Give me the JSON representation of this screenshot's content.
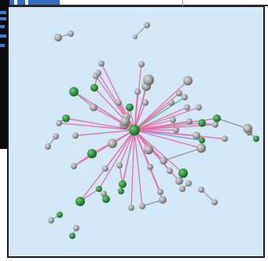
{
  "graph": {
    "colors": {
      "background": "#d2e8f8",
      "edge_pink": "#e56aa2",
      "edge_green": "#4fb57a",
      "edge_blue": "#7d8fe6",
      "edge_gray": "#8a8a8a",
      "node_green": "#2f8a3a",
      "node_gray": "#9a9a9a"
    },
    "hub": "hub",
    "nodes": [
      {
        "id": "hub",
        "c": "green",
        "s": 7
      },
      {
        "id": "n1",
        "c": "gray",
        "s": 6
      },
      {
        "id": "n2",
        "c": "gray",
        "s": 5
      },
      {
        "id": "n3",
        "c": "gray",
        "s": 7
      },
      {
        "id": "n4",
        "c": "gray",
        "s": 4
      },
      {
        "id": "n5",
        "c": "gray",
        "s": 4
      },
      {
        "id": "n6",
        "c": "gray",
        "s": 4
      },
      {
        "id": "n7",
        "c": "gray",
        "s": 6
      },
      {
        "id": "n8",
        "c": "gray",
        "s": 4
      },
      {
        "id": "n9",
        "c": "gray",
        "s": 4
      },
      {
        "id": "n10",
        "c": "gray",
        "s": 4
      },
      {
        "id": "n11",
        "c": "green",
        "s": 5
      },
      {
        "id": "n12",
        "c": "gray",
        "s": 4
      },
      {
        "id": "n13",
        "c": "gray",
        "s": 6
      },
      {
        "id": "n14",
        "c": "gray",
        "s": 4
      },
      {
        "id": "n15",
        "c": "gray",
        "s": 6
      },
      {
        "id": "n16",
        "c": "green",
        "s": 5
      },
      {
        "id": "n17",
        "c": "gray",
        "s": 4
      },
      {
        "id": "n18",
        "c": "gray",
        "s": 4
      },
      {
        "id": "n19",
        "c": "gray",
        "s": 4
      },
      {
        "id": "n20",
        "c": "green",
        "s": 5
      },
      {
        "id": "n21",
        "c": "gray",
        "s": 5
      },
      {
        "id": "n22",
        "c": "gray",
        "s": 6
      },
      {
        "id": "n23",
        "c": "gray",
        "s": 4
      },
      {
        "id": "n24",
        "c": "green",
        "s": 4
      },
      {
        "id": "n25",
        "c": "green",
        "s": 5
      },
      {
        "id": "n26",
        "c": "gray",
        "s": 4
      },
      {
        "id": "n27",
        "c": "gray",
        "s": 4
      },
      {
        "id": "n28",
        "c": "gray",
        "s": 4
      },
      {
        "id": "n29",
        "c": "gray",
        "s": 6
      },
      {
        "id": "n30",
        "c": "green",
        "s": 6
      },
      {
        "id": "n31",
        "c": "gray",
        "s": 5
      },
      {
        "id": "n32",
        "c": "gray",
        "s": 4
      },
      {
        "id": "n33",
        "c": "green",
        "s": 5
      },
      {
        "id": "n34",
        "c": "gray",
        "s": 4
      },
      {
        "id": "n35",
        "c": "gray",
        "s": 6
      },
      {
        "id": "n36",
        "c": "green",
        "s": 6
      },
      {
        "id": "n37",
        "c": "gray",
        "s": 4
      },
      {
        "id": "n38",
        "c": "green",
        "s": 6
      },
      {
        "id": "n39",
        "c": "gray",
        "s": 5
      },
      {
        "id": "n40",
        "c": "green",
        "s": 6
      },
      {
        "id": "n41",
        "c": "green",
        "s": 4
      },
      {
        "id": "n42",
        "c": "gray",
        "s": 5
      },
      {
        "id": "n43",
        "c": "green",
        "s": 5
      },
      {
        "id": "n44",
        "c": "gray",
        "s": 4
      },
      {
        "id": "n45",
        "c": "gray",
        "s": 4
      },
      {
        "id": "n46",
        "c": "gray",
        "s": 4
      },
      {
        "id": "n47",
        "c": "gray",
        "s": 5
      },
      {
        "id": "n48",
        "c": "gray",
        "s": 4
      },
      {
        "id": "n49",
        "c": "gray",
        "s": 4
      },
      {
        "id": "n50",
        "c": "green",
        "s": 4
      },
      {
        "id": "n51",
        "c": "gray",
        "s": 4
      },
      {
        "id": "n52",
        "c": "gray",
        "s": 4
      },
      {
        "id": "n53",
        "c": "gray",
        "s": 4
      },
      {
        "id": "n54",
        "c": "gray",
        "s": 4
      },
      {
        "id": "n55",
        "c": "gray",
        "s": 5
      },
      {
        "id": "n56",
        "c": "gray",
        "s": 4
      },
      {
        "id": "n57",
        "c": "gray",
        "s": 3
      },
      {
        "id": "n58",
        "c": "gray",
        "s": 4
      },
      {
        "id": "n59",
        "c": "green",
        "s": 5
      },
      {
        "id": "n60",
        "c": "gray",
        "s": 4
      },
      {
        "id": "n61",
        "c": "gray",
        "s": 6
      },
      {
        "id": "n62",
        "c": "green",
        "s": 4
      },
      {
        "id": "n63",
        "c": "gray",
        "s": 4
      },
      {
        "id": "n64",
        "c": "green",
        "s": 4
      },
      {
        "id": "n65",
        "c": "gray",
        "s": 4
      },
      {
        "id": "n66",
        "c": "gray",
        "s": 4
      },
      {
        "id": "n67",
        "c": "gray",
        "s": 4
      },
      {
        "id": "n68",
        "c": "gray",
        "s": 4
      },
      {
        "id": "n69",
        "c": "gray",
        "s": 4
      },
      {
        "id": "n70",
        "c": "gray",
        "s": 4
      },
      {
        "id": "n71",
        "c": "gray",
        "s": 4
      },
      {
        "id": "n72",
        "c": "gray",
        "s": 4
      },
      {
        "id": "n73",
        "c": "green",
        "s": 4
      }
    ],
    "edges": [
      {
        "a": "hub",
        "b": "n1",
        "c": "pink"
      },
      {
        "a": "hub",
        "b": "n2",
        "c": "pink"
      },
      {
        "a": "hub",
        "b": "n3",
        "c": "pink"
      },
      {
        "a": "hub",
        "b": "n4",
        "c": "pink"
      },
      {
        "a": "hub",
        "b": "n5",
        "c": "pink"
      },
      {
        "a": "hub",
        "b": "n6",
        "c": "pink"
      },
      {
        "a": "hub",
        "b": "n7",
        "c": "pink"
      },
      {
        "a": "hub",
        "b": "n8",
        "c": "pink"
      },
      {
        "a": "hub",
        "b": "n9",
        "c": "pink"
      },
      {
        "a": "hub",
        "b": "n10",
        "c": "pink"
      },
      {
        "a": "hub",
        "b": "n11",
        "c": "pink"
      },
      {
        "a": "hub",
        "b": "n12",
        "c": "pink"
      },
      {
        "a": "hub",
        "b": "n13",
        "c": "pink"
      },
      {
        "a": "hub",
        "b": "n14",
        "c": "pink"
      },
      {
        "a": "hub",
        "b": "n15",
        "c": "pink"
      },
      {
        "a": "hub",
        "b": "n16",
        "c": "pink"
      },
      {
        "a": "hub",
        "b": "n17",
        "c": "green"
      },
      {
        "a": "hub",
        "b": "n18",
        "c": "pink"
      },
      {
        "a": "hub",
        "b": "n19",
        "c": "pink"
      },
      {
        "a": "hub",
        "b": "n20",
        "c": "pink"
      },
      {
        "a": "hub",
        "b": "n21",
        "c": "pink"
      },
      {
        "a": "hub",
        "b": "n22",
        "c": "pink"
      },
      {
        "a": "hub",
        "b": "n23",
        "c": "pink"
      },
      {
        "a": "hub",
        "b": "n24",
        "c": "blue"
      },
      {
        "a": "hub",
        "b": "n25",
        "c": "pink"
      },
      {
        "a": "hub",
        "b": "n26",
        "c": "pink"
      },
      {
        "a": "hub",
        "b": "n27",
        "c": "pink"
      },
      {
        "a": "hub",
        "b": "n28",
        "c": "pink"
      },
      {
        "a": "hub",
        "b": "n29",
        "c": "pink"
      },
      {
        "a": "hub",
        "b": "n30",
        "c": "pink"
      },
      {
        "a": "hub",
        "b": "n31",
        "c": "pink"
      },
      {
        "a": "hub",
        "b": "n32",
        "c": "pink"
      },
      {
        "a": "hub",
        "b": "n33",
        "c": "pink"
      },
      {
        "a": "hub",
        "b": "n34",
        "c": "pink"
      },
      {
        "a": "hub",
        "b": "n35",
        "c": "pink"
      },
      {
        "a": "hub",
        "b": "n36",
        "c": "pink"
      },
      {
        "a": "hub",
        "b": "n37",
        "c": "pink"
      },
      {
        "a": "hub",
        "b": "n38",
        "c": "pink"
      },
      {
        "a": "hub",
        "b": "n39",
        "c": "pink"
      },
      {
        "a": "hub",
        "b": "n40",
        "c": "pink"
      },
      {
        "a": "hub",
        "b": "n41",
        "c": "pink"
      },
      {
        "a": "hub",
        "b": "n42",
        "c": "pink"
      },
      {
        "a": "hub",
        "b": "n43",
        "c": "pink"
      },
      {
        "a": "hub",
        "b": "n44",
        "c": "pink"
      },
      {
        "a": "hub",
        "b": "n45",
        "c": "pink"
      },
      {
        "a": "hub",
        "b": "n46",
        "c": "pink"
      },
      {
        "a": "hub",
        "b": "n47",
        "c": "pink"
      },
      {
        "a": "hub",
        "b": "n48",
        "c": "pink"
      },
      {
        "a": "hub",
        "b": "n49",
        "c": "pink"
      },
      {
        "a": "hub",
        "b": "n50",
        "c": "pink"
      },
      {
        "a": "hub",
        "b": "n51",
        "c": "pink"
      },
      {
        "a": "hub",
        "b": "n52",
        "c": "pink"
      },
      {
        "a": "hub",
        "b": "n53",
        "c": "pink"
      },
      {
        "a": "hub",
        "b": "n54",
        "c": "pink"
      },
      {
        "a": "n3",
        "b": "n13",
        "c": "gray"
      },
      {
        "a": "n11",
        "b": "n12",
        "c": "gray"
      },
      {
        "a": "n15",
        "b": "n16",
        "c": "pink"
      },
      {
        "a": "n30",
        "b": "n31",
        "c": "gray"
      },
      {
        "a": "n33",
        "b": "n32",
        "c": "gray"
      },
      {
        "a": "n38",
        "b": "n39",
        "c": "pink"
      },
      {
        "a": "n40",
        "b": "n41",
        "c": "pink"
      },
      {
        "a": "n36",
        "b": "n37",
        "c": "pink"
      },
      {
        "a": "n43",
        "b": "n44",
        "c": "pink"
      },
      {
        "a": "n25",
        "b": "n26",
        "c": "pink"
      },
      {
        "a": "n27",
        "b": "n28",
        "c": "gray"
      },
      {
        "a": "n47",
        "b": "n46",
        "c": "gray"
      },
      {
        "a": "n22",
        "b": "n42",
        "c": "gray"
      },
      {
        "a": "n55",
        "b": "n56",
        "c": "gray"
      },
      {
        "a": "n57",
        "b": "n58",
        "c": "gray"
      },
      {
        "a": "n59",
        "b": "n60",
        "c": "gray"
      },
      {
        "a": "n61",
        "b": "n20",
        "c": "gray"
      },
      {
        "a": "n62",
        "b": "n63",
        "c": "gray"
      },
      {
        "a": "n64",
        "b": "n65",
        "c": "gray"
      },
      {
        "a": "n66",
        "b": "n67",
        "c": "gray"
      },
      {
        "a": "n68",
        "b": "n69",
        "c": "gray"
      },
      {
        "a": "n70",
        "b": "n71",
        "c": "gray"
      },
      {
        "a": "n72",
        "b": "n73",
        "c": "gray"
      }
    ]
  }
}
